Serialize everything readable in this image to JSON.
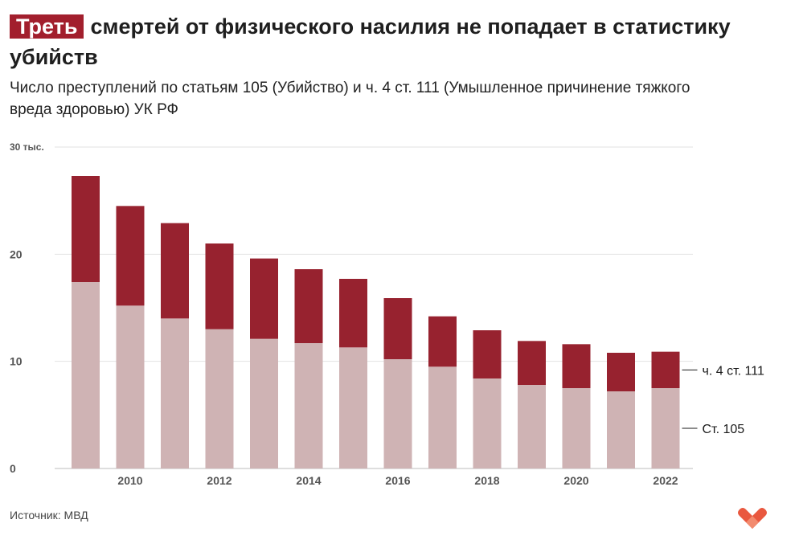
{
  "header": {
    "title_highlight": "Треть",
    "title_rest": "смертей от физического насилия не попадает в статистику убийств",
    "subtitle": "Число преступлений по статьям 105 (Убийство) и ч. 4 ст. 111 (Умышленное причинение тяжкого вреда здоровью) УК РФ"
  },
  "source": "Источник: МВД",
  "chart_data": {
    "type": "bar",
    "stacked": true,
    "title": "Треть смертей от физического насилия не попадает в статистику убийств",
    "years": [
      2009,
      2010,
      2011,
      2012,
      2013,
      2014,
      2015,
      2016,
      2017,
      2018,
      2019,
      2020,
      2021,
      2022
    ],
    "x_tick_labels": [
      "2010",
      "2012",
      "2014",
      "2016",
      "2018",
      "2020",
      "2022"
    ],
    "y_ticks": [
      {
        "value": 0,
        "label": "0"
      },
      {
        "value": 10,
        "label": "10"
      },
      {
        "value": 20,
        "label": "20"
      },
      {
        "value": 30,
        "label": "30 тыс."
      }
    ],
    "ylim": [
      0,
      30
    ],
    "units": "thousands",
    "series": [
      {
        "name": "Ст. 105",
        "color": "#cfb3b4",
        "values": [
          17.4,
          15.2,
          14.0,
          13.0,
          12.1,
          11.7,
          11.3,
          10.2,
          9.5,
          8.4,
          7.8,
          7.5,
          7.2,
          7.5
        ]
      },
      {
        "name": "ч. 4 ст. 111",
        "color": "#97222f",
        "values": [
          9.9,
          9.3,
          8.9,
          8.0,
          7.5,
          6.9,
          6.4,
          5.7,
          4.7,
          4.5,
          4.1,
          4.1,
          3.6,
          3.4
        ]
      }
    ]
  }
}
